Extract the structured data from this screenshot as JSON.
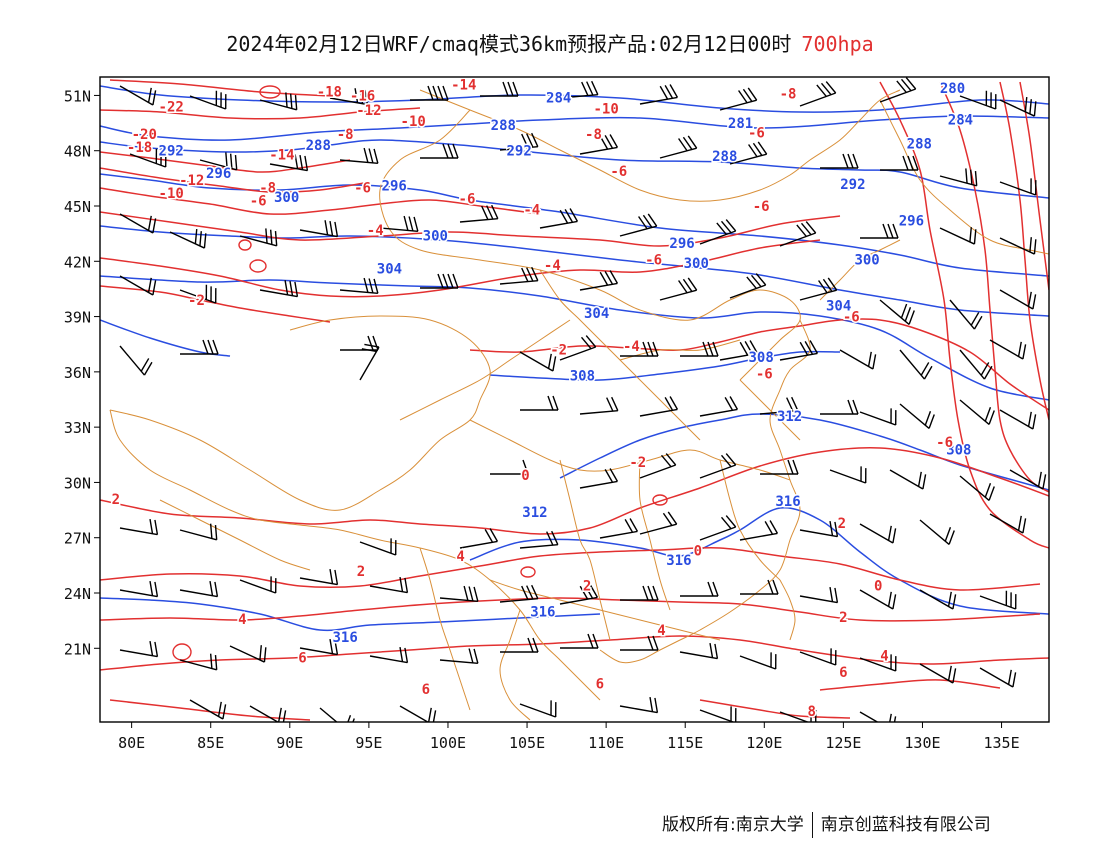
{
  "header": {
    "title": "2024年02月12日WRF/cmaq模式36km预报产品:02月12日00时",
    "level": "700hpa",
    "level_color": "#e23030"
  },
  "map": {
    "lon_range": [
      78,
      138
    ],
    "lat_range": [
      17,
      52
    ],
    "lat_ticks": [
      {
        "value": 51,
        "label": "51N"
      },
      {
        "value": 48,
        "label": "48N"
      },
      {
        "value": 45,
        "label": "45N"
      },
      {
        "value": 42,
        "label": "42N"
      },
      {
        "value": 39,
        "label": "39N"
      },
      {
        "value": 36,
        "label": "36N"
      },
      {
        "value": 33,
        "label": "33N"
      },
      {
        "value": 30,
        "label": "30N"
      },
      {
        "value": 27,
        "label": "27N"
      },
      {
        "value": 24,
        "label": "24N"
      },
      {
        "value": 21,
        "label": "21N"
      }
    ],
    "lon_ticks": [
      {
        "value": 80,
        "label": "80E"
      },
      {
        "value": 85,
        "label": "85E"
      },
      {
        "value": 90,
        "label": "90E"
      },
      {
        "value": 95,
        "label": "95E"
      },
      {
        "value": 100,
        "label": "100E"
      },
      {
        "value": 105,
        "label": "105E"
      },
      {
        "value": 110,
        "label": "110E"
      },
      {
        "value": 115,
        "label": "115E"
      },
      {
        "value": 120,
        "label": "120E"
      },
      {
        "value": 125,
        "label": "125E"
      },
      {
        "value": 130,
        "label": "130E"
      },
      {
        "value": 135,
        "label": "135E"
      }
    ],
    "colors": {
      "height_contour": "#2a4de0",
      "temp_contour": "#e23030",
      "boundary": "#d9903a",
      "wind_barb": "#000000"
    },
    "height_labels": [
      {
        "text": "284",
        "lon": 107.0,
        "lat": 50.9
      },
      {
        "text": "288",
        "lon": 103.5,
        "lat": 49.4
      },
      {
        "text": "281",
        "lon": 118.5,
        "lat": 49.5
      },
      {
        "text": "280",
        "lon": 131.9,
        "lat": 51.4
      },
      {
        "text": "284",
        "lon": 132.4,
        "lat": 49.7
      },
      {
        "text": "292",
        "lon": 82.5,
        "lat": 48.0
      },
      {
        "text": "288",
        "lon": 91.8,
        "lat": 48.3
      },
      {
        "text": "292",
        "lon": 104.5,
        "lat": 48.0
      },
      {
        "text": "288",
        "lon": 117.5,
        "lat": 47.7
      },
      {
        "text": "288",
        "lon": 129.8,
        "lat": 48.4
      },
      {
        "text": "296",
        "lon": 96.6,
        "lat": 46.1
      },
      {
        "text": "292",
        "lon": 125.6,
        "lat": 46.2
      },
      {
        "text": "296",
        "lon": 85.5,
        "lat": 46.8
      },
      {
        "text": "300",
        "lon": 89.8,
        "lat": 45.5
      },
      {
        "text": "300",
        "lon": 99.2,
        "lat": 43.4
      },
      {
        "text": "296",
        "lon": 114.8,
        "lat": 43.0
      },
      {
        "text": "296",
        "lon": 129.3,
        "lat": 44.2
      },
      {
        "text": "300",
        "lon": 126.5,
        "lat": 42.1
      },
      {
        "text": "304",
        "lon": 96.3,
        "lat": 41.6
      },
      {
        "text": "300",
        "lon": 115.7,
        "lat": 41.9
      },
      {
        "text": "304",
        "lon": 109.4,
        "lat": 39.2
      },
      {
        "text": "304",
        "lon": 124.7,
        "lat": 39.6
      },
      {
        "text": "308",
        "lon": 119.8,
        "lat": 36.8
      },
      {
        "text": "308",
        "lon": 108.5,
        "lat": 35.8
      },
      {
        "text": "312",
        "lon": 121.6,
        "lat": 33.6
      },
      {
        "text": "308",
        "lon": 132.3,
        "lat": 31.8
      },
      {
        "text": "312",
        "lon": 105.5,
        "lat": 28.4
      },
      {
        "text": "316",
        "lon": 121.5,
        "lat": 29.0
      },
      {
        "text": "316",
        "lon": 114.6,
        "lat": 25.8
      },
      {
        "text": "316",
        "lon": 106.0,
        "lat": 23.0
      },
      {
        "text": "316",
        "lon": 93.5,
        "lat": 21.6
      }
    ],
    "temp_labels": [
      {
        "text": "-14",
        "lon": 101.0,
        "lat": 51.6
      },
      {
        "text": "-18",
        "lon": 92.5,
        "lat": 51.2
      },
      {
        "text": "-16",
        "lon": 94.6,
        "lat": 51.0
      },
      {
        "text": "-22",
        "lon": 82.5,
        "lat": 50.4
      },
      {
        "text": "-12",
        "lon": 95.0,
        "lat": 50.2
      },
      {
        "text": "-10",
        "lon": 97.8,
        "lat": 49.6
      },
      {
        "text": "-10",
        "lon": 110.0,
        "lat": 50.3
      },
      {
        "text": "-8",
        "lon": 121.5,
        "lat": 51.1
      },
      {
        "text": "-20",
        "lon": 80.8,
        "lat": 48.9
      },
      {
        "text": "-8",
        "lon": 93.5,
        "lat": 48.9
      },
      {
        "text": "-8",
        "lon": 109.2,
        "lat": 48.9
      },
      {
        "text": "-6",
        "lon": 119.5,
        "lat": 49.0
      },
      {
        "text": "-18",
        "lon": 80.5,
        "lat": 48.2
      },
      {
        "text": "-14",
        "lon": 89.5,
        "lat": 47.8
      },
      {
        "text": "-6",
        "lon": 110.8,
        "lat": 46.9
      },
      {
        "text": "-12",
        "lon": 83.8,
        "lat": 46.4
      },
      {
        "text": "-8",
        "lon": 88.6,
        "lat": 46.0
      },
      {
        "text": "-6",
        "lon": 94.6,
        "lat": 46.0
      },
      {
        "text": "-10",
        "lon": 82.5,
        "lat": 45.7
      },
      {
        "text": "-6",
        "lon": 88.0,
        "lat": 45.3
      },
      {
        "text": "-6",
        "lon": 101.2,
        "lat": 45.4
      },
      {
        "text": "-4",
        "lon": 105.3,
        "lat": 44.8
      },
      {
        "text": "-6",
        "lon": 119.8,
        "lat": 45.0
      },
      {
        "text": "-4",
        "lon": 95.4,
        "lat": 43.7
      },
      {
        "text": "-6",
        "lon": 113.0,
        "lat": 42.1
      },
      {
        "text": "-4",
        "lon": 106.6,
        "lat": 41.8
      },
      {
        "text": "-2",
        "lon": 84.1,
        "lat": 39.9
      },
      {
        "text": "-6",
        "lon": 125.5,
        "lat": 39.0
      },
      {
        "text": "-2",
        "lon": 107.0,
        "lat": 37.2
      },
      {
        "text": "-4",
        "lon": 111.6,
        "lat": 37.4
      },
      {
        "text": "-6",
        "lon": 120.0,
        "lat": 35.9
      },
      {
        "text": "-6",
        "lon": 131.4,
        "lat": 32.2
      },
      {
        "text": "-2",
        "lon": 112.0,
        "lat": 31.1
      },
      {
        "text": "0",
        "lon": 104.9,
        "lat": 30.4
      },
      {
        "text": "2",
        "lon": 79.0,
        "lat": 29.1
      },
      {
        "text": "2",
        "lon": 124.9,
        "lat": 27.8
      },
      {
        "text": "0",
        "lon": 115.8,
        "lat": 26.3
      },
      {
        "text": "4",
        "lon": 100.8,
        "lat": 26.0
      },
      {
        "text": "2",
        "lon": 94.5,
        "lat": 25.2
      },
      {
        "text": "2",
        "lon": 108.8,
        "lat": 24.4
      },
      {
        "text": "0",
        "lon": 127.2,
        "lat": 24.4
      },
      {
        "text": "4",
        "lon": 87.0,
        "lat": 22.6
      },
      {
        "text": "2",
        "lon": 125.0,
        "lat": 22.7
      },
      {
        "text": "4",
        "lon": 113.5,
        "lat": 22.0
      },
      {
        "text": "4",
        "lon": 127.6,
        "lat": 20.6
      },
      {
        "text": "6",
        "lon": 90.8,
        "lat": 20.5
      },
      {
        "text": "6",
        "lon": 125.0,
        "lat": 19.7
      },
      {
        "text": "6",
        "lon": 98.6,
        "lat": 18.8
      },
      {
        "text": "6",
        "lon": 109.6,
        "lat": 19.1
      },
      {
        "text": "8",
        "lon": 123.0,
        "lat": 17.6
      }
    ]
  },
  "footer": {
    "copyright": "版权所有:南京大学",
    "company": "南京创蓝科技有限公司"
  }
}
